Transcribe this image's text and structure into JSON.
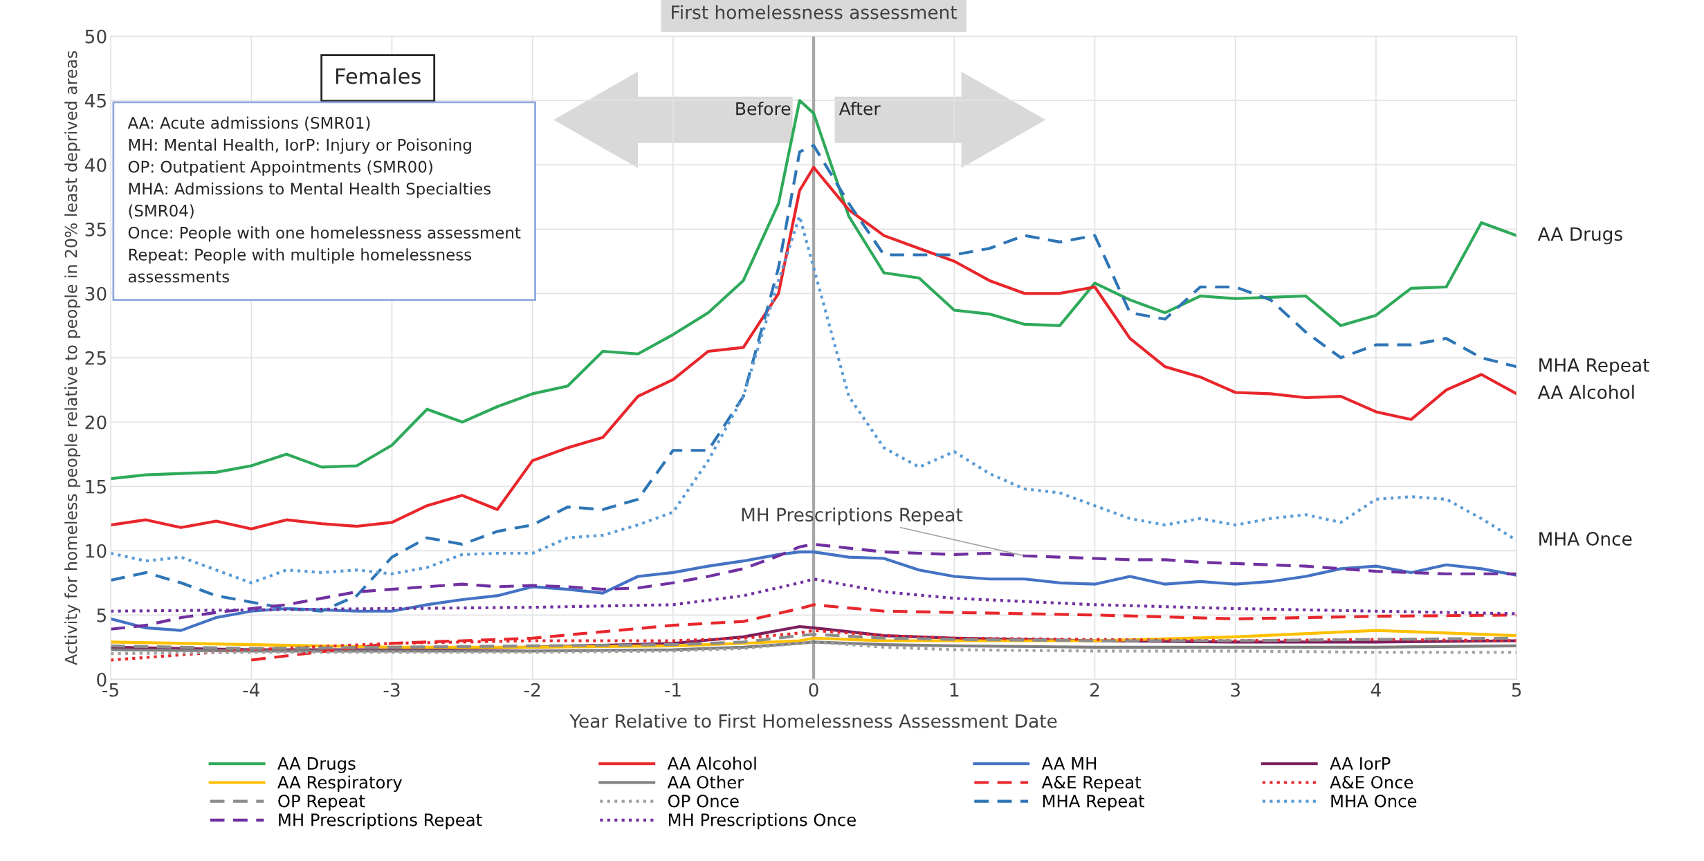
{
  "chart_data": {
    "type": "line",
    "xlabel": "Year Relative to First Homelessness Assessment Date",
    "ylabel": "Activity for homeless people relative to people in 20% least deprived areas",
    "x": [
      -5,
      -4.75,
      -4.5,
      -4.25,
      -4,
      -3.75,
      -3.5,
      -3.25,
      -3,
      -2.75,
      -2.5,
      -2.25,
      -2,
      -1.75,
      -1.5,
      -1.25,
      -1,
      -0.75,
      -0.5,
      -0.25,
      -0.1,
      0,
      0.25,
      0.5,
      0.75,
      1,
      1.25,
      1.5,
      1.75,
      2,
      2.25,
      2.5,
      2.75,
      3,
      3.25,
      3.5,
      3.75,
      4,
      4.25,
      4.5,
      4.75,
      5
    ],
    "xlim": [
      -5,
      5
    ],
    "xticks": [
      -5,
      -4,
      -3,
      -2,
      -1,
      0,
      1,
      2,
      3,
      4,
      5
    ],
    "ylim": [
      0,
      50
    ],
    "yticks": [
      0,
      5,
      10,
      15,
      20,
      25,
      30,
      35,
      40,
      45,
      50
    ],
    "grid": true,
    "legend": "bottom",
    "marker": "none",
    "series": [
      {
        "name": "AA Drugs",
        "color": "#2eaa5a",
        "line_style": "solid",
        "values": [
          15.6,
          15.9,
          16.0,
          16.1,
          16.6,
          17.5,
          16.5,
          16.6,
          18.2,
          21.0,
          20.0,
          21.2,
          22.2,
          22.8,
          25.5,
          25.3,
          26.8,
          28.5,
          31,
          37,
          45,
          44,
          36,
          31.6,
          31.2,
          28.7,
          28.4,
          27.6,
          27.5,
          30.8,
          29.5,
          28.5,
          29.8,
          29.6,
          29.7,
          29.8,
          27.5,
          28.3,
          30.4,
          30.5,
          35.5,
          34.5
        ]
      },
      {
        "name": "AA Alcohol",
        "color": "#e8262b",
        "line_style": "solid",
        "values": [
          12,
          12.4,
          11.8,
          12.3,
          11.7,
          12.4,
          12.1,
          11.9,
          12.2,
          13.5,
          14.3,
          13.2,
          17.0,
          18.0,
          18.8,
          22.0,
          23.3,
          25.5,
          25.8,
          30,
          38,
          39.8,
          36.5,
          34.5,
          33.5,
          32.5,
          31,
          30,
          30,
          30.5,
          26.5,
          24.3,
          23.5,
          22.3,
          22.2,
          21.9,
          22,
          20.8,
          20.2,
          22.5,
          23.7,
          22.2
        ]
      },
      {
        "name": "AA MH",
        "color": "#4472c4",
        "line_style": "solid",
        "values": [
          4.7,
          4.0,
          3.8,
          4.8,
          5.3,
          5.5,
          5.4,
          5.3,
          5.3,
          5.8,
          6.2,
          6.5,
          7.2,
          7.0,
          6.7,
          8.0,
          8.3,
          8.8,
          9.2,
          9.7,
          9.9,
          9.9,
          9.5,
          9.4,
          8.5,
          8.0,
          7.8,
          7.8,
          7.5,
          7.4,
          8.0,
          7.4,
          7.6,
          7.4,
          7.6,
          8.0,
          8.6,
          8.8,
          8.3,
          8.9,
          8.6,
          8.1
        ]
      },
      {
        "name": "AA IorP",
        "color": "#7b1f5e",
        "line_style": "solid",
        "x": [
          -5,
          -4,
          -3,
          -2,
          -1,
          -0.5,
          -0.1,
          0,
          0.5,
          1,
          2,
          3,
          4,
          5
        ],
        "values": [
          2.5,
          2.3,
          2.3,
          2.5,
          2.8,
          3.3,
          4.1,
          4.0,
          3.4,
          3.2,
          3.0,
          2.9,
          2.9,
          3.0
        ]
      },
      {
        "name": "AA Respiratory",
        "color": "#ffc000",
        "line_style": "solid",
        "x": [
          -5,
          -4,
          -3,
          -2,
          -1,
          -0.5,
          -0.1,
          0,
          0.5,
          1,
          2,
          3,
          4,
          5
        ],
        "values": [
          2.9,
          2.7,
          2.5,
          2.5,
          2.6,
          2.8,
          3.0,
          3.2,
          3.0,
          3.0,
          3.0,
          3.3,
          3.8,
          3.4
        ]
      },
      {
        "name": "AA Other",
        "color": "#7f7f7f",
        "line_style": "solid",
        "x": [
          -5,
          -4,
          -3,
          -2,
          -1,
          -0.5,
          -0.1,
          0,
          0.5,
          1,
          2,
          3,
          4,
          5
        ],
        "values": [
          2.3,
          2.2,
          2.2,
          2.2,
          2.3,
          2.5,
          2.8,
          2.9,
          2.7,
          2.6,
          2.5,
          2.5,
          2.5,
          2.6
        ]
      },
      {
        "name": "A&E Repeat",
        "color": "#e8262b",
        "line_style": "dashed",
        "x": [
          -4,
          -3,
          -2,
          -1,
          -0.5,
          -0.1,
          0,
          0.5,
          1,
          2,
          3,
          4,
          5
        ],
        "values": [
          1.5,
          2.8,
          3.2,
          4.2,
          4.5,
          5.5,
          5.8,
          5.3,
          5.2,
          5.0,
          4.7,
          4.9,
          5.0
        ]
      },
      {
        "name": "A&E Once",
        "color": "#e8262b",
        "line_style": "dotted",
        "x": [
          -5,
          -4,
          -3,
          -2,
          -1,
          -0.5,
          -0.1,
          0,
          0.5,
          1,
          2,
          3,
          4,
          5
        ],
        "values": [
          1.5,
          2.3,
          2.8,
          3.0,
          3.0,
          3.2,
          3.6,
          3.8,
          3.4,
          3.2,
          3.1,
          3.0,
          3.1,
          3.0
        ]
      },
      {
        "name": "OP Repeat",
        "color": "#8c8c8c",
        "line_style": "dashed",
        "x": [
          -5,
          -4,
          -3,
          -2,
          -1,
          -0.5,
          -0.1,
          0,
          0.5,
          1,
          2,
          3,
          4,
          5
        ],
        "values": [
          2.6,
          2.4,
          2.5,
          2.6,
          2.7,
          2.9,
          3.4,
          3.5,
          3.2,
          3.1,
          3.0,
          3.0,
          3.1,
          3.2
        ]
      },
      {
        "name": "OP Once",
        "color": "#a0a0a0",
        "line_style": "dotted",
        "x": [
          -5,
          -4,
          -3,
          -2,
          -1,
          -0.5,
          -0.1,
          0,
          0.5,
          1,
          2,
          3,
          4,
          5
        ],
        "values": [
          2.0,
          2.1,
          2.1,
          2.1,
          2.2,
          2.4,
          2.8,
          2.9,
          2.5,
          2.3,
          2.2,
          2.2,
          2.1,
          2.1
        ]
      },
      {
        "name": "MHA Repeat",
        "color": "#2e75b6",
        "line_style": "dashed",
        "values": [
          7.7,
          8.3,
          7.5,
          6.5,
          6.0,
          5.5,
          5.3,
          6.5,
          9.5,
          11.0,
          10.5,
          11.5,
          12.0,
          13.4,
          13.2,
          14,
          17.8,
          17.8,
          22,
          32,
          41,
          41.5,
          37,
          33,
          33,
          33,
          33.5,
          34.5,
          34,
          34.5,
          28.5,
          28,
          30.5,
          30.5,
          29.5,
          27,
          25,
          26,
          26,
          26.5,
          25,
          24.3
        ]
      },
      {
        "name": "MHA Once",
        "color": "#5b9bd5",
        "line_style": "dotted",
        "values": [
          9.8,
          9.2,
          9.5,
          8.5,
          7.5,
          8.5,
          8.3,
          8.5,
          8.2,
          8.7,
          9.7,
          9.8,
          9.8,
          11,
          11.2,
          12,
          13,
          17,
          22,
          31,
          36,
          32,
          22,
          18,
          16.5,
          17.7,
          16,
          14.8,
          14.5,
          13.5,
          12.5,
          12.0,
          12.5,
          12,
          12.5,
          12.8,
          12.2,
          14,
          14.2,
          14,
          12.5,
          10.8
        ]
      },
      {
        "name": "MH Prescriptions Repeat",
        "color": "#7030a0",
        "line_style": "dashed",
        "values": [
          3.9,
          4.2,
          4.8,
          5.2,
          5.5,
          5.8,
          6.3,
          6.8,
          7.0,
          7.2,
          7.4,
          7.2,
          7.3,
          7.2,
          7.0,
          7.1,
          7.5,
          8.0,
          8.6,
          9.6,
          10.3,
          10.5,
          10.2,
          9.9,
          9.8,
          9.7,
          9.8,
          9.6,
          9.5,
          9.4,
          9.3,
          9.3,
          9.1,
          9.0,
          8.9,
          8.8,
          8.6,
          8.4,
          8.3,
          8.2,
          8.2,
          8.2
        ]
      },
      {
        "name": "MH Prescriptions Once",
        "color": "#7030a0",
        "line_style": "dotted",
        "x": [
          -5,
          -4,
          -3,
          -2,
          -1,
          -0.5,
          -0.1,
          0,
          0.5,
          1,
          2,
          3,
          4,
          5
        ],
        "values": [
          5.3,
          5.4,
          5.5,
          5.6,
          5.8,
          6.5,
          7.5,
          7.8,
          6.8,
          6.3,
          5.8,
          5.5,
          5.3,
          5.1
        ]
      }
    ],
    "ref_lines": [
      {
        "axis": "x",
        "value": 0,
        "label": "First homelessness assessment",
        "color": "#a6a6a6"
      }
    ],
    "annotations": [
      "Females",
      "AA: Acute admissions (SMR01)\nMH: Mental Health, IorP: Injury or Poisoning\nOP: Outpatient Appointments (SMR00)\nMHA: Admissions to Mental Health Specialties\n(SMR04)\nOnce: People with one homelessness assessment\nRepeat: People with multiple homelessness\nassessments",
      "Before",
      "After",
      "AA Drugs",
      "MHA Repeat",
      "AA Alcohol",
      "MHA Once",
      {
        "text": "MH Prescriptions Repeat",
        "x": 1.5,
        "y": 9.6
      }
    ]
  }
}
